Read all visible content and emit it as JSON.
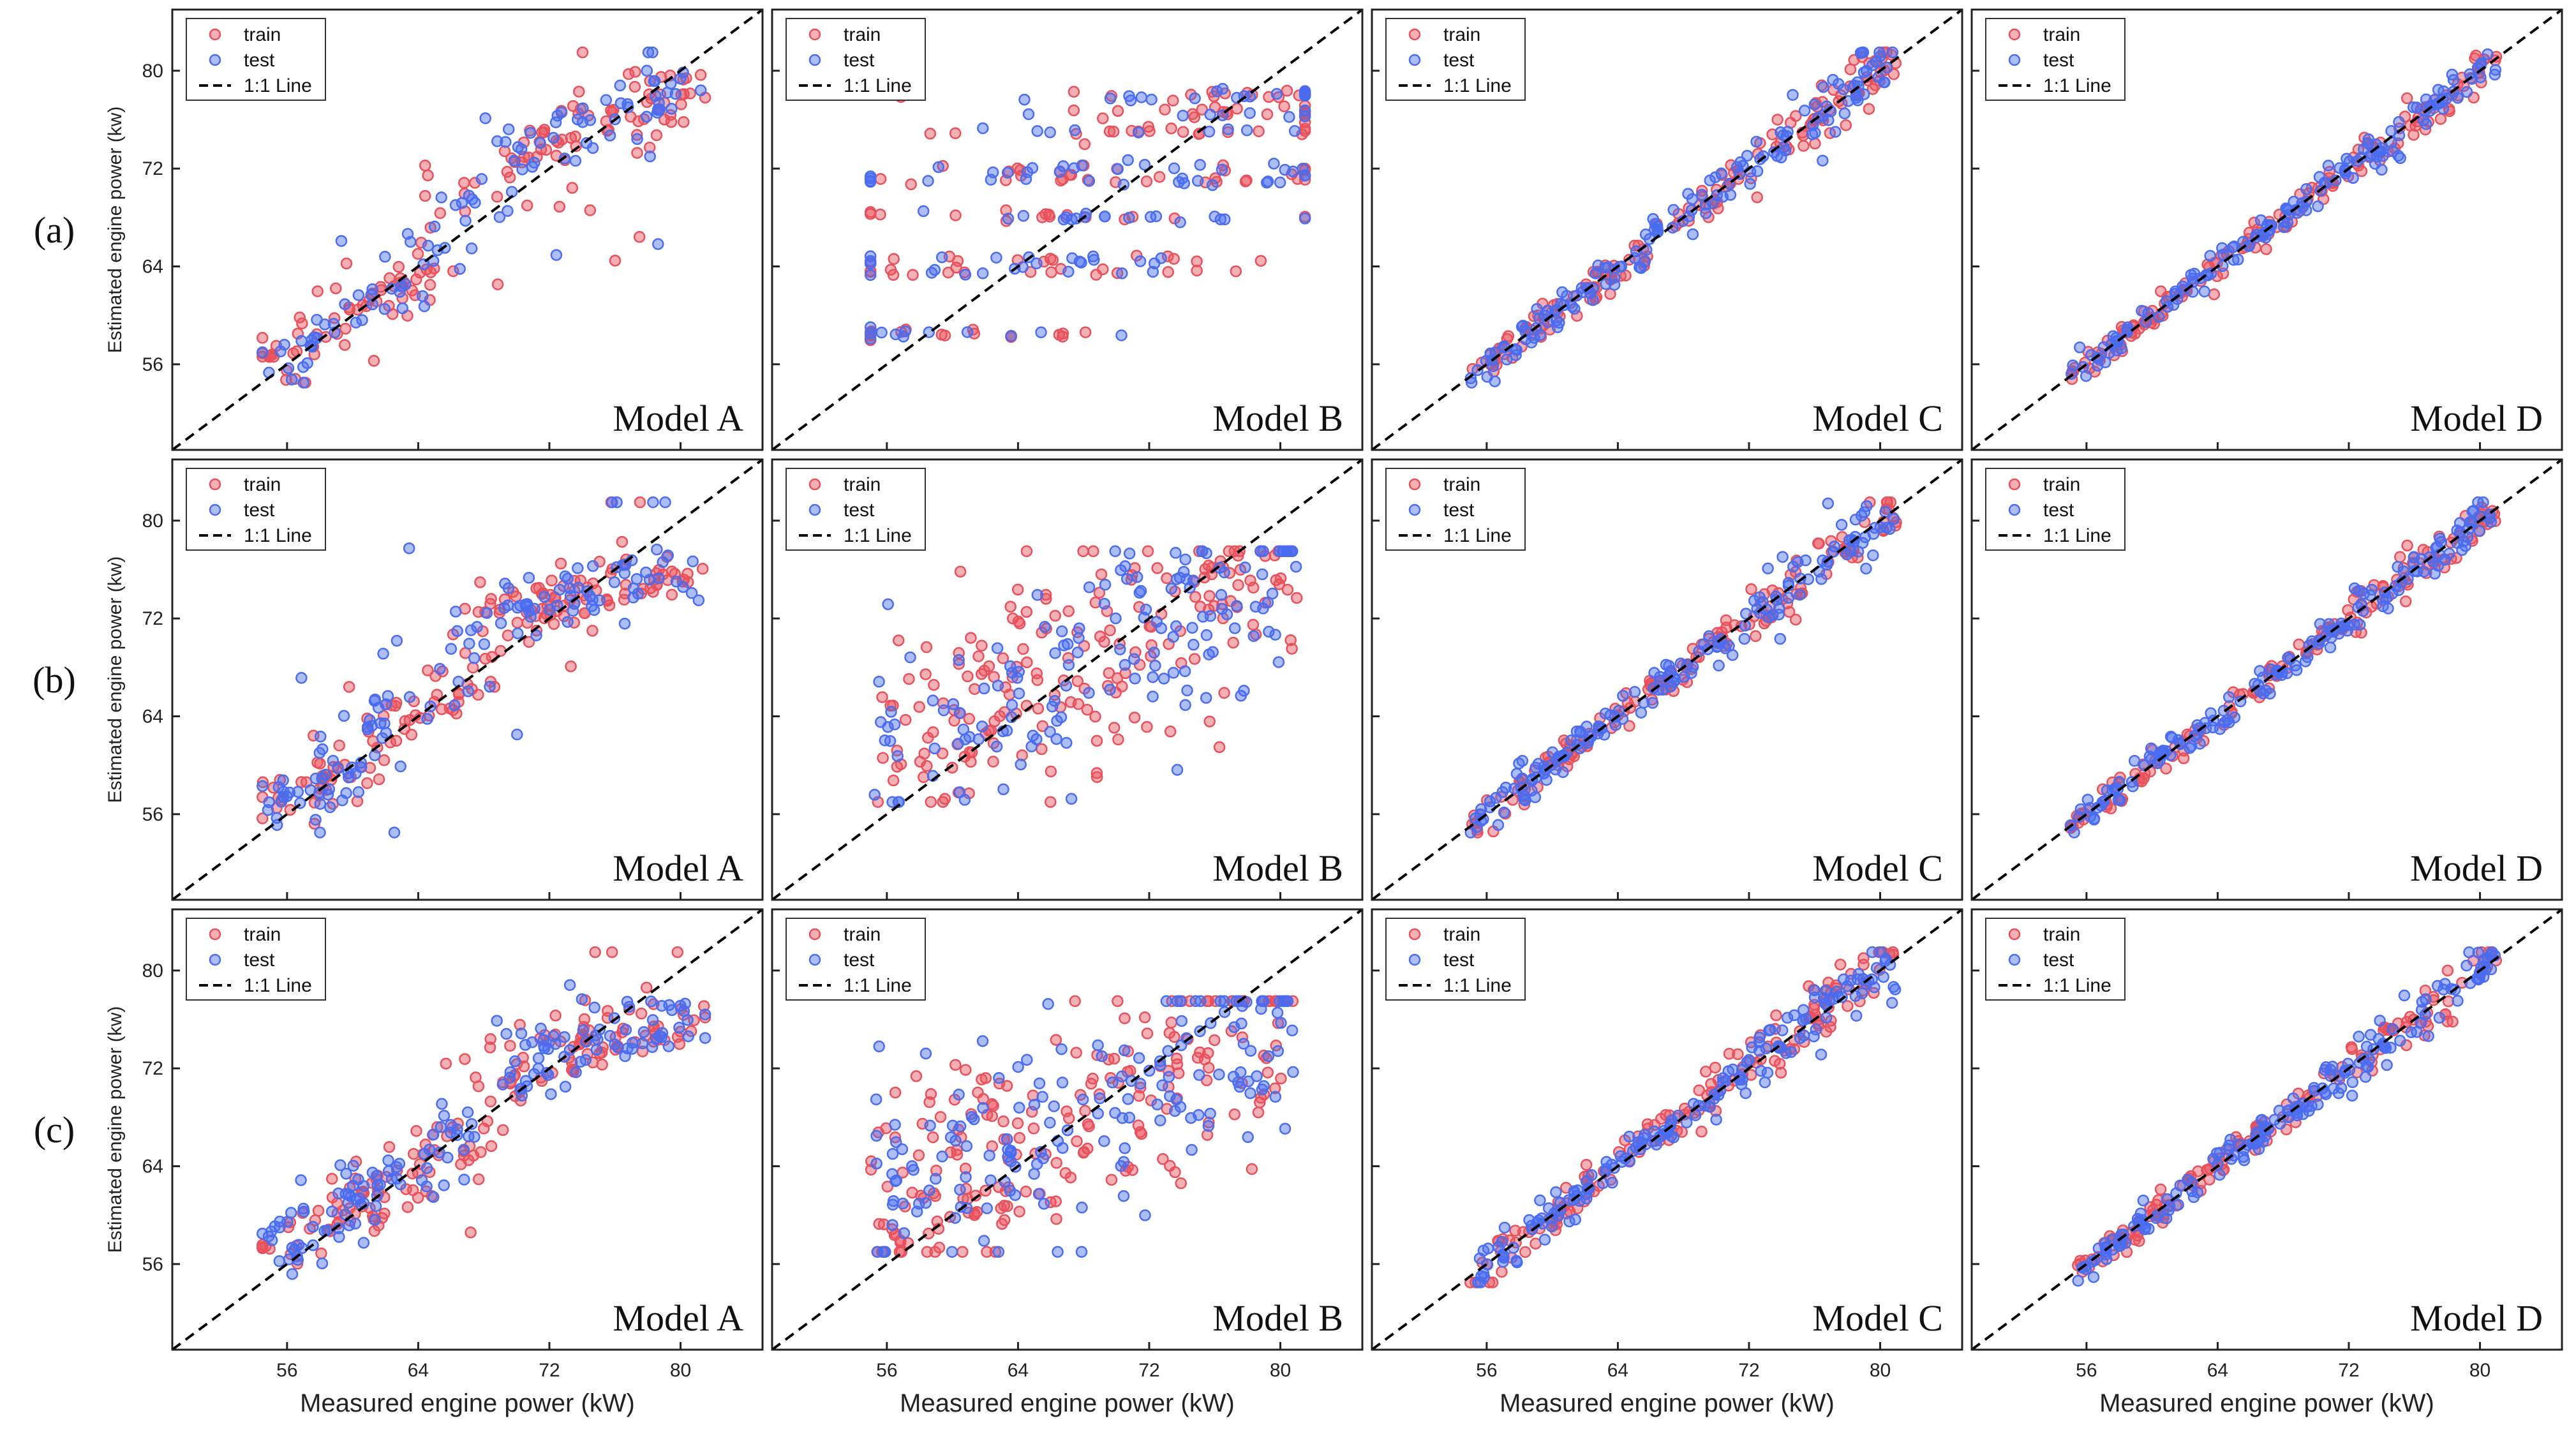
{
  "chart_data": {
    "type": "scatter",
    "figure": "Estimated vs measured engine power for Models A-D under conditions (a), (b), (c)",
    "xlabel": "Measured engine power (kW)",
    "ylabel": "Estimated engine power (kw)",
    "xlim": [
      49,
      85
    ],
    "ylim": [
      49,
      85
    ],
    "xticks": [
      56,
      64,
      72,
      80
    ],
    "yticks": [
      56,
      64,
      72,
      80
    ],
    "legend": {
      "position": "top-left",
      "entries": [
        {
          "label": "train",
          "color": "#e8505b",
          "marker": "circle"
        },
        {
          "label": "test",
          "color": "#4a6cf0",
          "marker": "circle"
        },
        {
          "label": "1:1 Line",
          "color": "#000000",
          "marker": "dashed-line"
        }
      ]
    },
    "rows": [
      {
        "label": "(a)",
        "panels": [
          {
            "model": "Model A",
            "train_points": 150,
            "test_points": 110,
            "pattern": "clusters",
            "clusters": [
              [
                55.5,
                56.5
              ],
              [
                58,
                58.5
              ],
              [
                61,
                61
              ],
              [
                63,
                63
              ],
              [
                65,
                65.5
              ],
              [
                68,
                70
              ],
              [
                71,
                73
              ],
              [
                73,
                75
              ],
              [
                76,
                76
              ],
              [
                78,
                77
              ],
              [
                80,
                79
              ]
            ]
          },
          {
            "model": "Model B",
            "train_points": 150,
            "test_points": 130,
            "pattern": "bands",
            "bands": [
              58.5,
              63.5,
              64.5,
              68,
              71,
              72,
              75,
              76.5,
              78
            ]
          },
          {
            "model": "Model C",
            "train_points": 150,
            "test_points": 150,
            "pattern": "tight",
            "noise": 0.8
          },
          {
            "model": "Model D",
            "train_points": 150,
            "test_points": 150,
            "pattern": "tight",
            "noise": 0.55
          }
        ]
      },
      {
        "label": "(b)",
        "panels": [
          {
            "model": "Model A",
            "train_points": 170,
            "test_points": 140,
            "pattern": "clusters",
            "clusters": [
              [
                56,
                57
              ],
              [
                58,
                58.5
              ],
              [
                60,
                60
              ],
              [
                62,
                62
              ],
              [
                64,
                65
              ],
              [
                66,
                66
              ],
              [
                68,
                71
              ],
              [
                70,
                73
              ],
              [
                72,
                73
              ],
              [
                74,
                74
              ],
              [
                77,
                75
              ],
              [
                79,
                75
              ]
            ]
          },
          {
            "model": "Model B",
            "train_points": 190,
            "test_points": 150,
            "pattern": "scatter",
            "noise": 4.5
          },
          {
            "model": "Model C",
            "train_points": 150,
            "test_points": 160,
            "pattern": "tight",
            "noise": 0.75
          },
          {
            "model": "Model D",
            "train_points": 150,
            "test_points": 160,
            "pattern": "tight",
            "noise": 0.6
          }
        ]
      },
      {
        "label": "(c)",
        "panels": [
          {
            "model": "Model A",
            "train_points": 170,
            "test_points": 160,
            "pattern": "clusters",
            "clusters": [
              [
                56,
                57.5
              ],
              [
                59,
                59.5
              ],
              [
                61,
                61.5
              ],
              [
                63,
                63
              ],
              [
                65,
                65.5
              ],
              [
                67,
                66.5
              ],
              [
                69,
                71
              ],
              [
                71,
                74
              ],
              [
                73,
                73
              ],
              [
                75,
                74.5
              ],
              [
                78,
                75
              ],
              [
                80,
                76
              ]
            ]
          },
          {
            "model": "Model B",
            "train_points": 200,
            "test_points": 170,
            "pattern": "scatter",
            "noise": 4.5
          },
          {
            "model": "Model C",
            "train_points": 150,
            "test_points": 170,
            "pattern": "tight",
            "noise": 0.85
          },
          {
            "model": "Model D",
            "train_points": 150,
            "test_points": 170,
            "pattern": "tight",
            "noise": 0.65
          }
        ]
      }
    ],
    "colors": {
      "train": "#e8505b",
      "test": "#4a6cf0",
      "line": "#000000",
      "frame": "#222222"
    }
  }
}
